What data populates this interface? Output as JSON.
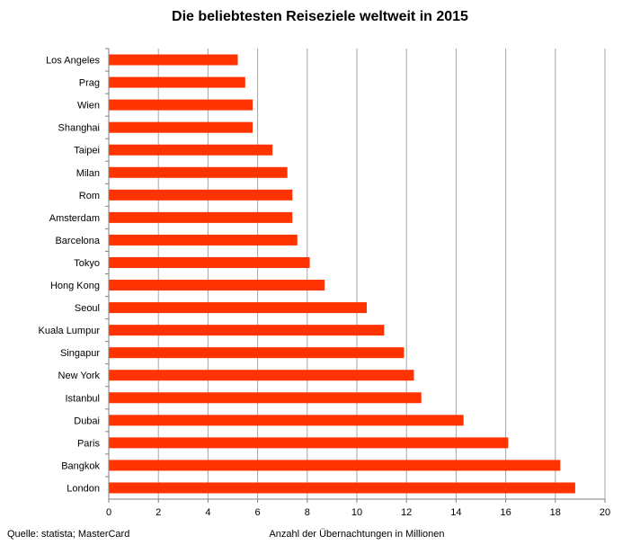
{
  "chart_data": {
    "type": "bar",
    "orientation": "horizontal",
    "title": "Die beliebtesten Reiseziele weltweit in 2015",
    "xlabel": "Anzahl der Übernachtungen in Millionen",
    "ylabel": "",
    "xlim": [
      0,
      20
    ],
    "x_ticks": [
      "0",
      "2",
      "4",
      "6",
      "8",
      "10",
      "12",
      "14",
      "16",
      "18",
      "20"
    ],
    "grid": true,
    "bar_color": "#ff3300",
    "categories": [
      "Los Angeles",
      "Prag",
      "Wien",
      "Shanghai",
      "Taipei",
      "Milan",
      "Rom",
      "Amsterdam",
      "Barcelona",
      "Tokyo",
      "Hong Kong",
      "Seoul",
      "Kuala Lumpur",
      "Singapur",
      "New York",
      "Istanbul",
      "Dubai",
      "Paris",
      "Bangkok",
      "London"
    ],
    "values": [
      5.2,
      5.5,
      5.8,
      5.8,
      6.6,
      7.2,
      7.4,
      7.4,
      7.6,
      8.1,
      8.7,
      10.4,
      11.1,
      11.9,
      12.3,
      12.6,
      14.3,
      16.1,
      18.2,
      18.8
    ]
  },
  "source": "Quelle: statista; MasterCard"
}
